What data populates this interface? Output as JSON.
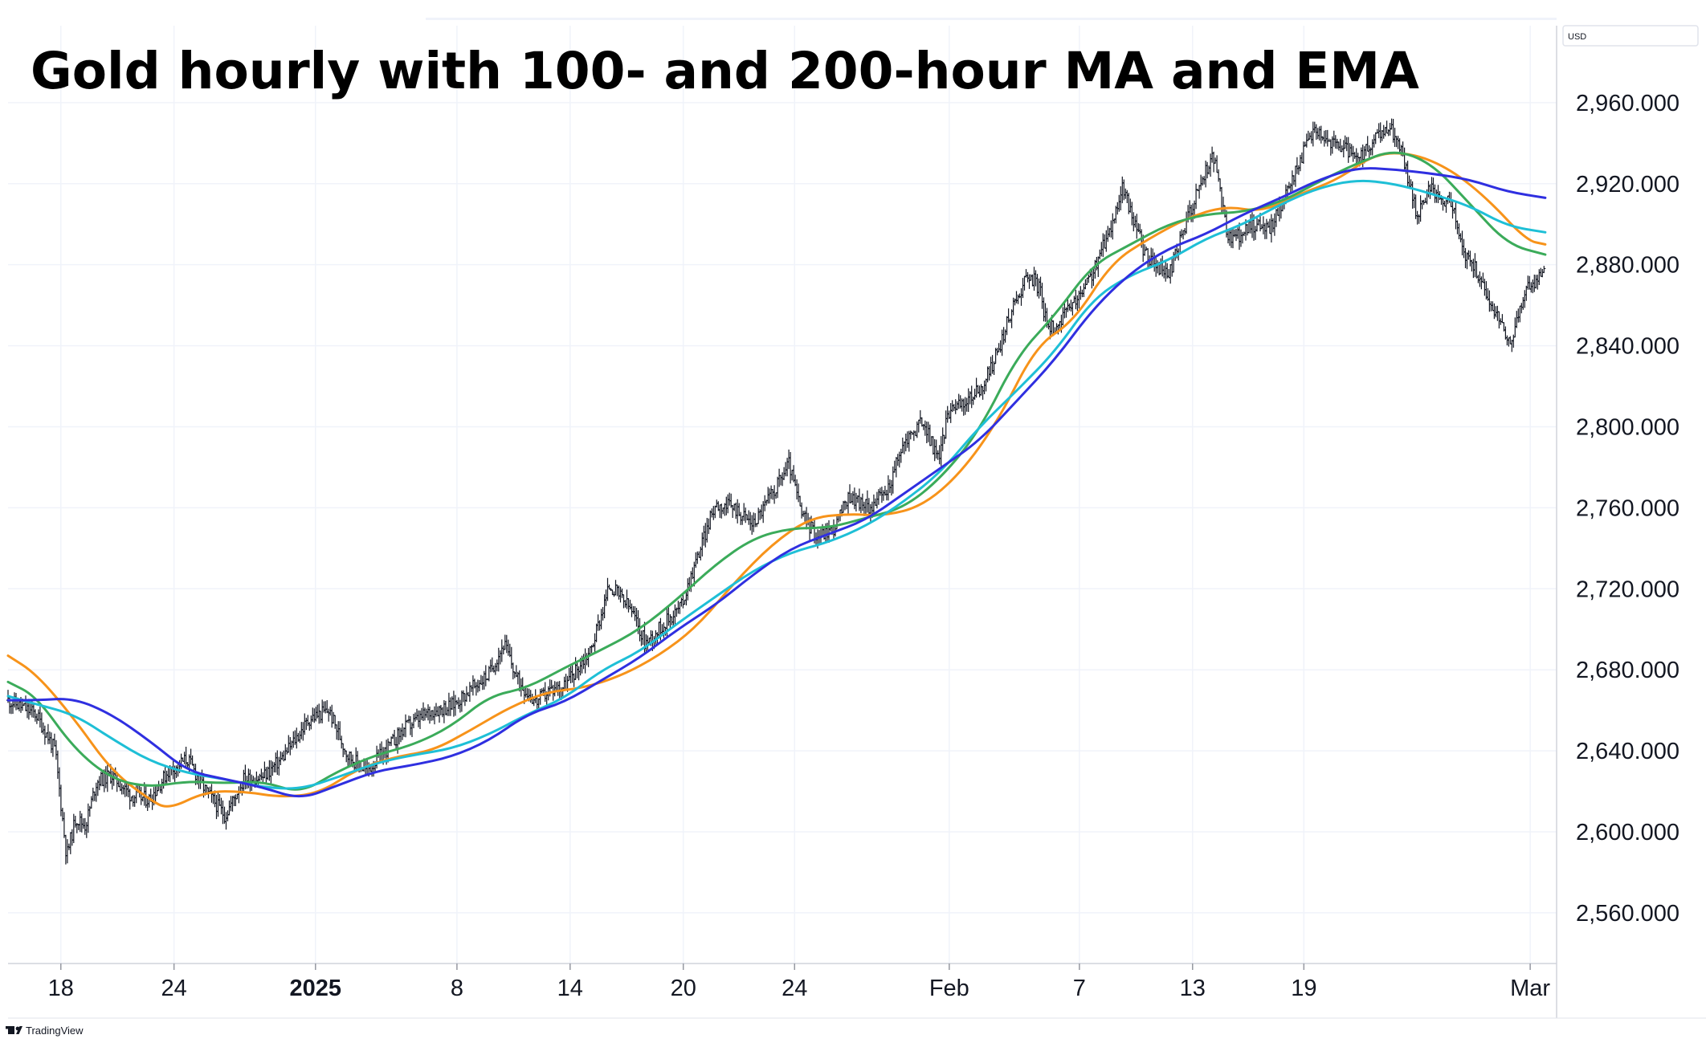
{
  "title": "Gold hourly with 100- and 200-hour MA and EMA",
  "currency_badge": "USD",
  "watermark": "TradingView",
  "colors": {
    "price": "#131722",
    "orange": "#f7931a",
    "green": "#3bab5a",
    "blue": "#2f2fe0",
    "cyan": "#1ebfd6",
    "grid": "#f0f3fa",
    "axis": "#131722"
  },
  "chart_data": {
    "type": "line",
    "title": "Gold hourly with 100- and 200-hour MA and EMA",
    "y_axis": {
      "position": "right",
      "ticks": [
        "2,560.000",
        "2,600.000",
        "2,640.000",
        "2,680.000",
        "2,720.000",
        "2,760.000",
        "2,800.000",
        "2,840.000",
        "2,880.000",
        "2,920.000",
        "2,960.000"
      ],
      "ylim": [
        2535,
        2998
      ]
    },
    "x_axis": {
      "tick_labels": [
        {
          "label": "18",
          "t": 5.3,
          "bold": false
        },
        {
          "label": "24",
          "t": 11.3,
          "bold": false
        },
        {
          "label": "2025",
          "t": 18.8,
          "bold": true
        },
        {
          "label": "8",
          "t": 26.3,
          "bold": false
        },
        {
          "label": "14",
          "t": 32.3,
          "bold": false
        },
        {
          "label": "20",
          "t": 38.3,
          "bold": false
        },
        {
          "label": "24",
          "t": 44.2,
          "bold": false
        },
        {
          "label": "Feb",
          "t": 52.4,
          "bold": false
        },
        {
          "label": "7",
          "t": 59.3,
          "bold": false
        },
        {
          "label": "13",
          "t": 65.3,
          "bold": false
        },
        {
          "label": "19",
          "t": 71.2,
          "bold": false
        },
        {
          "label": "Mar",
          "t": 83.2,
          "bold": false
        }
      ],
      "xlim": [
        2.5,
        84.6
      ]
    },
    "grid": true,
    "series": [
      {
        "color": "orange",
        "values": [
          [
            2.5,
            2687
          ],
          [
            4,
            2678
          ],
          [
            6,
            2656
          ],
          [
            8,
            2630
          ],
          [
            10,
            2616
          ],
          [
            11,
            2611
          ],
          [
            13,
            2620
          ],
          [
            15,
            2620
          ],
          [
            17,
            2617
          ],
          [
            19,
            2619
          ],
          [
            21,
            2631
          ],
          [
            23,
            2637
          ],
          [
            25,
            2640
          ],
          [
            27,
            2650
          ],
          [
            29,
            2661
          ],
          [
            31,
            2669
          ],
          [
            33,
            2671
          ],
          [
            35,
            2677
          ],
          [
            37,
            2687
          ],
          [
            39,
            2701
          ],
          [
            41,
            2723
          ],
          [
            43,
            2742
          ],
          [
            45,
            2755
          ],
          [
            47,
            2757
          ],
          [
            49,
            2756
          ],
          [
            51,
            2761
          ],
          [
            53,
            2777
          ],
          [
            55,
            2803
          ],
          [
            57,
            2840
          ],
          [
            59,
            2852
          ],
          [
            61,
            2881
          ],
          [
            63,
            2893
          ],
          [
            65,
            2903
          ],
          [
            67,
            2909
          ],
          [
            69,
            2906
          ],
          [
            71,
            2915
          ],
          [
            73,
            2922
          ],
          [
            75,
            2935
          ],
          [
            77,
            2935
          ],
          [
            79,
            2927
          ],
          [
            81,
            2912
          ],
          [
            83,
            2892
          ],
          [
            84,
            2890
          ]
        ]
      },
      {
        "color": "green",
        "values": [
          [
            2.5,
            2674
          ],
          [
            4,
            2667
          ],
          [
            6,
            2641
          ],
          [
            8,
            2626
          ],
          [
            10,
            2622
          ],
          [
            12,
            2625
          ],
          [
            14,
            2624
          ],
          [
            16,
            2625
          ],
          [
            18,
            2619
          ],
          [
            20,
            2630
          ],
          [
            22,
            2638
          ],
          [
            24,
            2643
          ],
          [
            26,
            2652
          ],
          [
            28,
            2667
          ],
          [
            30,
            2671
          ],
          [
            32,
            2681
          ],
          [
            34,
            2690
          ],
          [
            36,
            2700
          ],
          [
            38,
            2715
          ],
          [
            40,
            2732
          ],
          [
            42,
            2745
          ],
          [
            44,
            2750
          ],
          [
            46,
            2750
          ],
          [
            48,
            2755
          ],
          [
            50,
            2760
          ],
          [
            52,
            2775
          ],
          [
            54,
            2798
          ],
          [
            56,
            2835
          ],
          [
            58,
            2855
          ],
          [
            60,
            2880
          ],
          [
            62,
            2890
          ],
          [
            64,
            2900
          ],
          [
            66,
            2905
          ],
          [
            68,
            2906
          ],
          [
            70,
            2911
          ],
          [
            72,
            2921
          ],
          [
            74,
            2930
          ],
          [
            76,
            2937
          ],
          [
            78,
            2930
          ],
          [
            80,
            2910
          ],
          [
            82,
            2890
          ],
          [
            84,
            2885
          ]
        ]
      },
      {
        "color": "cyan",
        "values": [
          [
            2.5,
            2667
          ],
          [
            4,
            2663
          ],
          [
            6,
            2658
          ],
          [
            8,
            2646
          ],
          [
            10,
            2635
          ],
          [
            12,
            2629
          ],
          [
            14,
            2626
          ],
          [
            16,
            2622
          ],
          [
            18,
            2621
          ],
          [
            20,
            2627
          ],
          [
            22,
            2634
          ],
          [
            24,
            2638
          ],
          [
            26,
            2641
          ],
          [
            28,
            2648
          ],
          [
            30,
            2658
          ],
          [
            32,
            2666
          ],
          [
            34,
            2680
          ],
          [
            36,
            2689
          ],
          [
            38,
            2703
          ],
          [
            40,
            2716
          ],
          [
            42,
            2729
          ],
          [
            44,
            2738
          ],
          [
            46,
            2743
          ],
          [
            48,
            2751
          ],
          [
            50,
            2763
          ],
          [
            52,
            2778
          ],
          [
            54,
            2800
          ],
          [
            56,
            2818
          ],
          [
            58,
            2837
          ],
          [
            60,
            2863
          ],
          [
            62,
            2875
          ],
          [
            64,
            2882
          ],
          [
            66,
            2893
          ],
          [
            68,
            2900
          ],
          [
            70,
            2910
          ],
          [
            72,
            2918
          ],
          [
            74,
            2922
          ],
          [
            76,
            2920
          ],
          [
            78,
            2915
          ],
          [
            80,
            2909
          ],
          [
            82,
            2899
          ],
          [
            84,
            2896
          ]
        ]
      },
      {
        "color": "blue",
        "values": [
          [
            2.5,
            2665
          ],
          [
            4,
            2665
          ],
          [
            6,
            2666
          ],
          [
            8,
            2658
          ],
          [
            10,
            2645
          ],
          [
            12,
            2630
          ],
          [
            14,
            2626
          ],
          [
            16,
            2622
          ],
          [
            18,
            2616
          ],
          [
            20,
            2623
          ],
          [
            22,
            2630
          ],
          [
            24,
            2633
          ],
          [
            26,
            2637
          ],
          [
            28,
            2645
          ],
          [
            30,
            2658
          ],
          [
            32,
            2664
          ],
          [
            34,
            2675
          ],
          [
            36,
            2686
          ],
          [
            38,
            2700
          ],
          [
            40,
            2712
          ],
          [
            42,
            2727
          ],
          [
            44,
            2740
          ],
          [
            46,
            2747
          ],
          [
            48,
            2754
          ],
          [
            50,
            2767
          ],
          [
            52,
            2780
          ],
          [
            54,
            2793
          ],
          [
            56,
            2813
          ],
          [
            58,
            2833
          ],
          [
            60,
            2858
          ],
          [
            62,
            2876
          ],
          [
            64,
            2888
          ],
          [
            66,
            2895
          ],
          [
            68,
            2905
          ],
          [
            70,
            2913
          ],
          [
            72,
            2922
          ],
          [
            74,
            2928
          ],
          [
            76,
            2927
          ],
          [
            78,
            2925
          ],
          [
            80,
            2922
          ],
          [
            82,
            2916
          ],
          [
            84,
            2913
          ]
        ]
      }
    ],
    "price_path": [
      [
        2.5,
        2665
      ],
      [
        4,
        2658
      ],
      [
        5,
        2640
      ],
      [
        5.6,
        2588
      ],
      [
        6.1,
        2607
      ],
      [
        6.6,
        2603
      ],
      [
        7.2,
        2625
      ],
      [
        8,
        2628
      ],
      [
        9,
        2618
      ],
      [
        10,
        2616
      ],
      [
        11,
        2630
      ],
      [
        12,
        2636
      ],
      [
        13,
        2620
      ],
      [
        14,
        2608
      ],
      [
        15,
        2626
      ],
      [
        16,
        2627
      ],
      [
        17,
        2636
      ],
      [
        18.5,
        2656
      ],
      [
        19.5,
        2660
      ],
      [
        20.5,
        2638
      ],
      [
        21.5,
        2630
      ],
      [
        22.5,
        2640
      ],
      [
        23.5,
        2651
      ],
      [
        25,
        2660
      ],
      [
        26,
        2662
      ],
      [
        27,
        2670
      ],
      [
        28,
        2678
      ],
      [
        28.8,
        2693
      ],
      [
        29.5,
        2675
      ],
      [
        30.5,
        2664
      ],
      [
        31.2,
        2670
      ],
      [
        32,
        2672
      ],
      [
        33.4,
        2690
      ],
      [
        34.4,
        2722
      ],
      [
        35.5,
        2710
      ],
      [
        36.3,
        2693
      ],
      [
        37.2,
        2702
      ],
      [
        38.2,
        2712
      ],
      [
        39.2,
        2740
      ],
      [
        40,
        2762
      ],
      [
        41,
        2760
      ],
      [
        42,
        2752
      ],
      [
        43.2,
        2770
      ],
      [
        43.9,
        2782
      ],
      [
        44.6,
        2756
      ],
      [
        45.4,
        2746
      ],
      [
        46.3,
        2750
      ],
      [
        47.1,
        2766
      ],
      [
        48.1,
        2760
      ],
      [
        49.1,
        2768
      ],
      [
        50,
        2792
      ],
      [
        51,
        2803
      ],
      [
        51.8,
        2784
      ],
      [
        52.5,
        2812
      ],
      [
        53,
        2810
      ],
      [
        54.2,
        2820
      ],
      [
        55,
        2838
      ],
      [
        55.8,
        2860
      ],
      [
        56.6,
        2876
      ],
      [
        57.2,
        2868
      ],
      [
        57.6,
        2848
      ],
      [
        58.3,
        2852
      ],
      [
        59.5,
        2867
      ],
      [
        60.2,
        2880
      ],
      [
        61,
        2900
      ],
      [
        61.6,
        2918
      ],
      [
        62.1,
        2904
      ],
      [
        62.8,
        2885
      ],
      [
        63.5,
        2878
      ],
      [
        64.1,
        2876
      ],
      [
        65.1,
        2905
      ],
      [
        65.8,
        2922
      ],
      [
        66.4,
        2934
      ],
      [
        67.2,
        2892
      ],
      [
        67.8,
        2895
      ],
      [
        68.6,
        2900
      ],
      [
        69.4,
        2898
      ],
      [
        70.3,
        2915
      ],
      [
        71,
        2932
      ],
      [
        71.8,
        2948
      ],
      [
        72.6,
        2940
      ],
      [
        73.4,
        2938
      ],
      [
        74,
        2930
      ],
      [
        75,
        2942
      ],
      [
        75.8,
        2948
      ],
      [
        76.4,
        2935
      ],
      [
        76.8,
        2920
      ],
      [
        77.2,
        2905
      ],
      [
        77.8,
        2917
      ],
      [
        78.4,
        2915
      ],
      [
        79.1,
        2908
      ],
      [
        79.7,
        2885
      ],
      [
        80.3,
        2878
      ],
      [
        81.1,
        2860
      ],
      [
        81.6,
        2854
      ],
      [
        82,
        2840
      ],
      [
        82.5,
        2852
      ],
      [
        82.9,
        2866
      ],
      [
        83.3,
        2870
      ],
      [
        84,
        2876
      ]
    ]
  }
}
